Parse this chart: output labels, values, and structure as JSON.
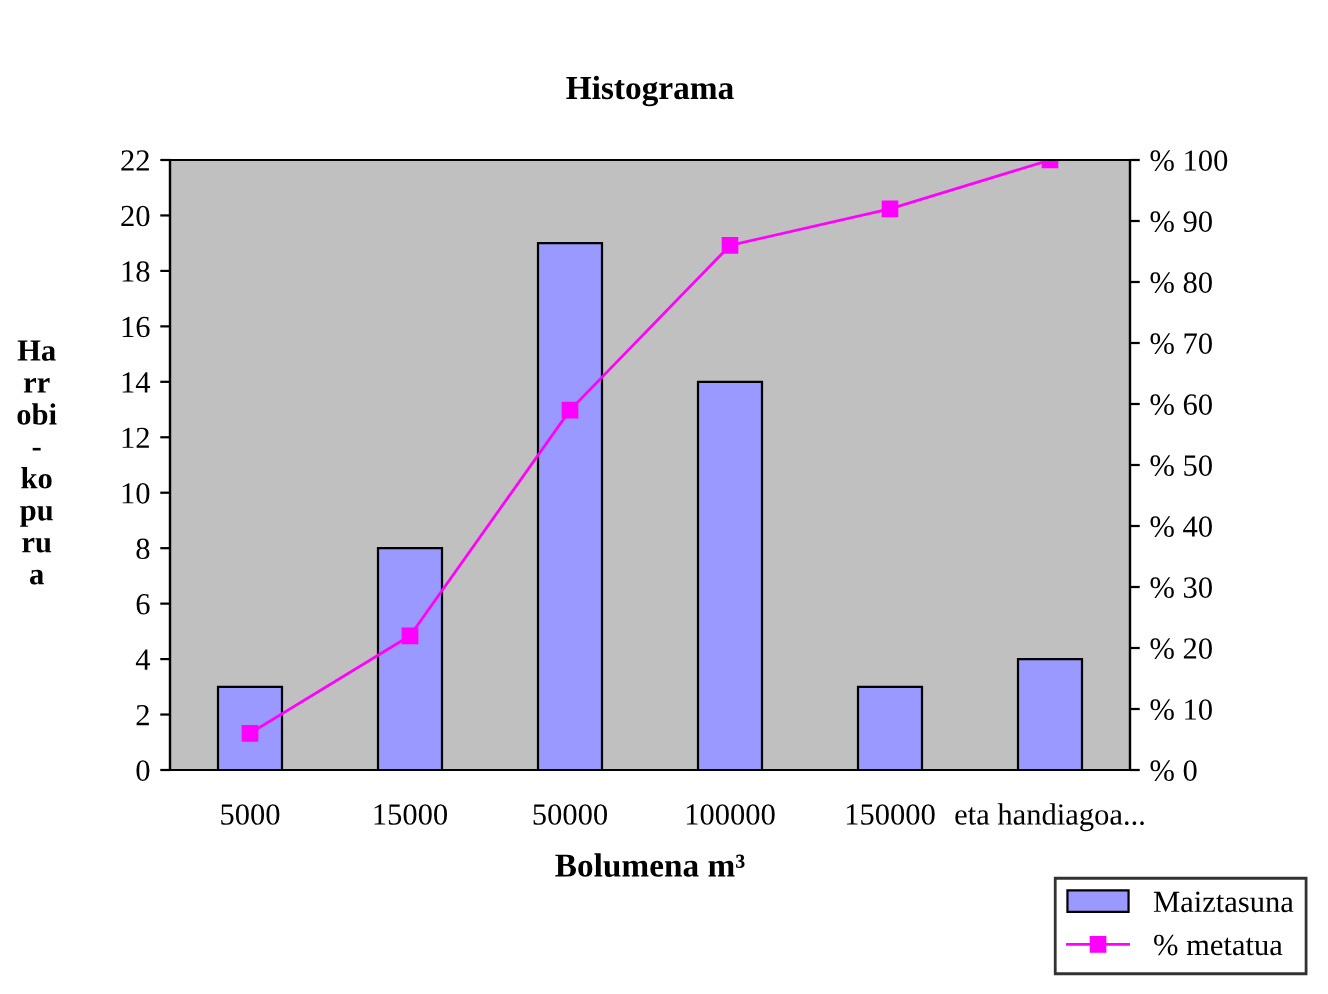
{
  "chart_data": {
    "type": "bar",
    "title": "Histograma",
    "xlabel": "Bolumena m³",
    "ylabel": "Ha\nrr\nobi\n-\nko\npu\nru\na",
    "categories": [
      "5000",
      "15000",
      "50000",
      "100000",
      "150000",
      "eta handiagoa..."
    ],
    "series": [
      {
        "name": "Maiztasuna",
        "color": "#9999ff",
        "values": [
          3,
          8,
          19,
          14,
          3,
          4
        ]
      },
      {
        "name": "% metatua",
        "type": "line",
        "axis": "y2",
        "color": "#ff00ff",
        "marker": "square",
        "values": [
          6,
          22,
          59,
          86,
          92,
          100
        ]
      }
    ],
    "ylim": [
      0,
      22
    ],
    "yticks": [
      0,
      2,
      4,
      6,
      8,
      10,
      12,
      14,
      16,
      18,
      20,
      22
    ],
    "y2lim": [
      0,
      100
    ],
    "y2ticks": [
      {
        "value": 0,
        "label": "% 0"
      },
      {
        "value": 10,
        "label": "% 10"
      },
      {
        "value": 20,
        "label": "% 20"
      },
      {
        "value": 30,
        "label": "% 30"
      },
      {
        "value": 40,
        "label": "% 40"
      },
      {
        "value": 50,
        "label": "% 50"
      },
      {
        "value": 60,
        "label": "% 60"
      },
      {
        "value": 70,
        "label": "% 70"
      },
      {
        "value": 80,
        "label": "% 80"
      },
      {
        "value": 90,
        "label": "% 90"
      },
      {
        "value": 100,
        "label": "% 100"
      }
    ],
    "grid": false,
    "legend": "bottom right"
  }
}
